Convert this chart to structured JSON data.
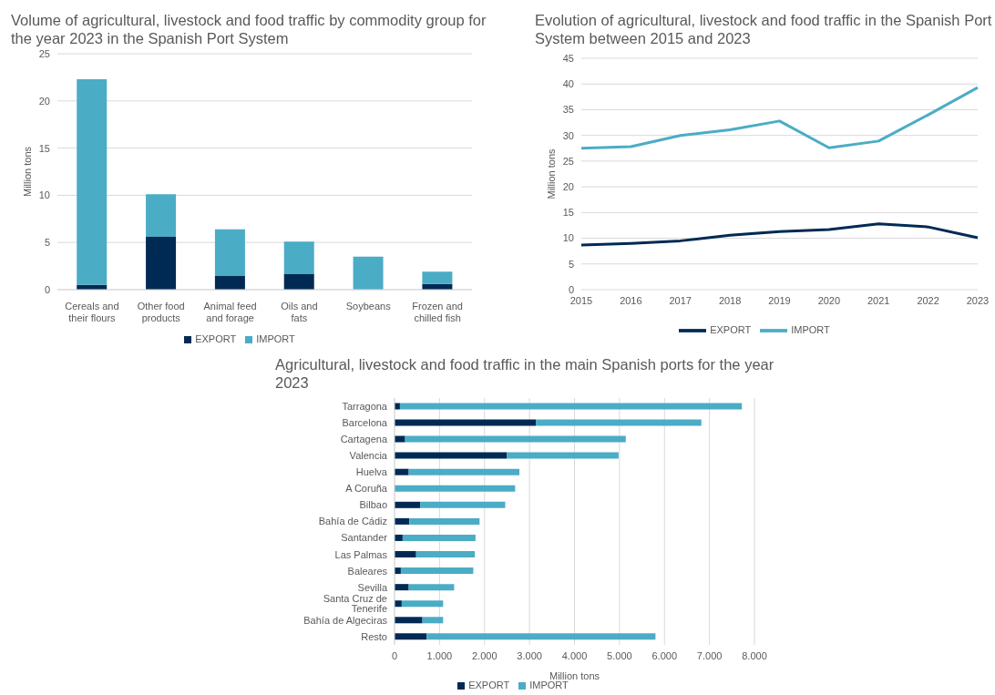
{
  "chart_data": [
    {
      "type": "bar",
      "title": "Volume of agricultural, livestock and food traffic by commodity group for the year 2023 in the Spanish Port System",
      "ylabel": "Million tons",
      "categories": [
        "Cereals and their flours",
        "Other food products",
        "Animal feed and forage",
        "Oils and fats",
        "Soybeans",
        "Frozen and chilled fish"
      ],
      "stacked": true,
      "series": [
        {
          "name": "EXPORT",
          "color": "#002a54",
          "values": [
            0.5,
            5.6,
            1.5,
            1.7,
            0,
            0.6
          ]
        },
        {
          "name": "IMPORT",
          "color": "#4bacc6",
          "values": [
            21.8,
            4.5,
            4.9,
            3.4,
            3.5,
            1.3
          ]
        }
      ],
      "ylim": [
        0,
        25
      ],
      "yticks": [
        0,
        5,
        10,
        15,
        20,
        25
      ],
      "grid": "y",
      "legend": "bottom"
    },
    {
      "type": "line",
      "title": "Evolution of agricultural, livestock and food traffic in the Spanish Port System between 2015 and 2023",
      "ylabel": "Million tons",
      "categories": [
        "2015",
        "2016",
        "2017",
        "2018",
        "2019",
        "2020",
        "2021",
        "2022",
        "2023"
      ],
      "series": [
        {
          "name": "EXPORT",
          "color": "#002a54",
          "values": [
            8.7,
            9.0,
            9.5,
            10.6,
            11.3,
            11.7,
            12.8,
            12.2,
            10.1
          ]
        },
        {
          "name": "IMPORT",
          "color": "#4bacc6",
          "values": [
            27.5,
            27.8,
            30.0,
            31.1,
            32.8,
            27.6,
            28.9,
            34.0,
            39.3
          ]
        }
      ],
      "ylim": [
        0,
        45
      ],
      "yticks": [
        0,
        5,
        10,
        15,
        20,
        25,
        30,
        35,
        40,
        45
      ],
      "grid": "y",
      "legend": "bottom",
      "line_style": "solid"
    },
    {
      "type": "bar",
      "orientation": "horizontal",
      "stacked": true,
      "title": "Agricultural, livestock and food traffic in the main Spanish ports for the year 2023",
      "xlabel": "Million tons",
      "categories": [
        "Tarragona",
        "Barcelona",
        "Cartagena",
        "Valencia",
        "Huelva",
        "A Coruña",
        "Bilbao",
        "Bahía de Cádiz",
        "Santander",
        "Las Palmas",
        "Baleares",
        "Sevilla",
        "Santa Cruz de Tenerife",
        "Bahía de Algeciras",
        "Resto"
      ],
      "series": [
        {
          "name": "EXPORT",
          "color": "#002a54",
          "values": [
            120,
            3140,
            235,
            2500,
            315,
            0,
            570,
            330,
            180,
            480,
            140,
            315,
            160,
            620,
            715
          ]
        },
        {
          "name": "IMPORT",
          "color": "#4bacc6",
          "values": [
            7600,
            3680,
            4905,
            2480,
            2460,
            2680,
            1890,
            1560,
            1620,
            1305,
            1610,
            1010,
            920,
            460,
            5085
          ]
        }
      ],
      "xlim": [
        0,
        8000
      ],
      "xticks": [
        0,
        {
          "value": 1000,
          "label": "1.000"
        },
        {
          "value": 2000,
          "label": "2.000"
        },
        {
          "value": 3000,
          "label": "3.000"
        },
        {
          "value": 4000,
          "label": "4.000"
        },
        {
          "value": 5000,
          "label": "5.000"
        },
        {
          "value": 6000,
          "label": "6.000"
        },
        {
          "value": 7000,
          "label": "7.000"
        },
        {
          "value": 8000,
          "label": "8.000"
        }
      ],
      "grid": "x",
      "legend": "bottom"
    }
  ]
}
